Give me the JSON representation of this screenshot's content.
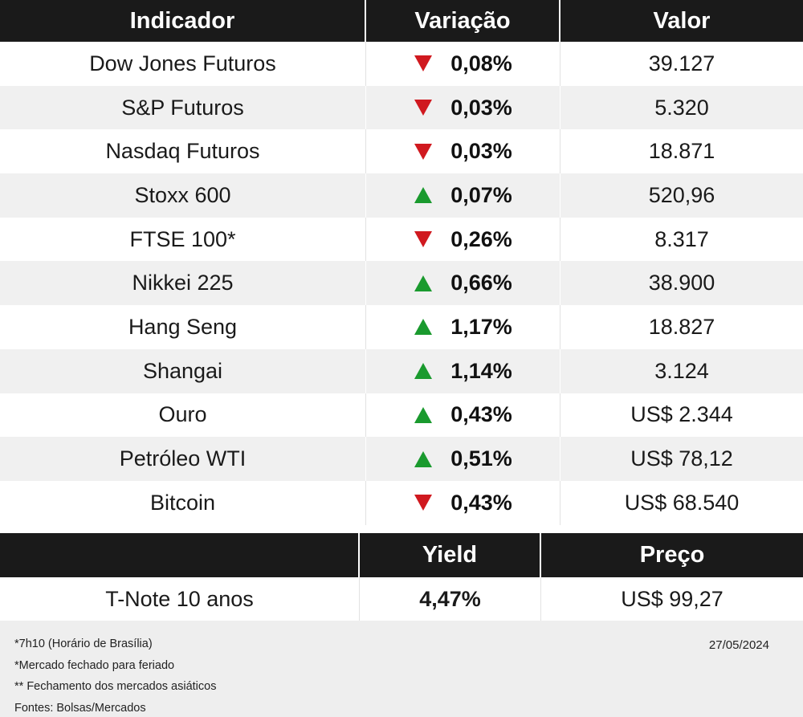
{
  "table": {
    "headers": [
      "Indicador",
      "Variação",
      "Valor"
    ],
    "rows": [
      {
        "name": "Dow Jones Futuros",
        "direction": "down",
        "change": "0,08%",
        "value": "39.127"
      },
      {
        "name": "S&P Futuros",
        "direction": "down",
        "change": "0,03%",
        "value": "5.320"
      },
      {
        "name": "Nasdaq Futuros",
        "direction": "down",
        "change": "0,03%",
        "value": "18.871"
      },
      {
        "name": "Stoxx 600",
        "direction": "up",
        "change": "0,07%",
        "value": "520,96"
      },
      {
        "name": "FTSE 100*",
        "direction": "down",
        "change": "0,26%",
        "value": "8.317"
      },
      {
        "name": "Nikkei 225",
        "direction": "up",
        "change": "0,66%",
        "value": "38.900"
      },
      {
        "name": "Hang Seng",
        "direction": "up",
        "change": "1,17%",
        "value": "18.827"
      },
      {
        "name": "Shangai",
        "direction": "up",
        "change": "1,14%",
        "value": "3.124"
      },
      {
        "name": "Ouro",
        "direction": "up",
        "change": "0,43%",
        "value": "US$ 2.344"
      },
      {
        "name": "Petróleo WTI",
        "direction": "up",
        "change": "0,51%",
        "value": "US$ 78,12"
      },
      {
        "name": "Bitcoin",
        "direction": "down",
        "change": "0,43%",
        "value": "US$ 68.540"
      }
    ]
  },
  "bond": {
    "headers": [
      "",
      "Yield",
      "Preço"
    ],
    "name": "T-Note 10 anos",
    "yield": "4,47%",
    "price": "US$ 99,27"
  },
  "footer": {
    "notes": [
      "*7h10 (Horário de Brasília)",
      "*Mercado fechado para feriado",
      "** Fechamento dos mercados asiáticos",
      "Fontes: Bolsas/Mercados"
    ],
    "date": "27/05/2024"
  },
  "colors": {
    "up": "#1a9a2e",
    "down": "#d0191f",
    "header_bg": "#1a1a1a",
    "row_alt": "#f0f0f0"
  }
}
